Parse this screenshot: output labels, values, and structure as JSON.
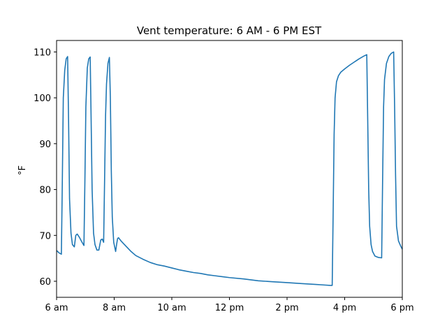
{
  "chart_data": {
    "type": "line",
    "title": "Vent temperature: 6 AM - 6 PM EST",
    "xlabel": "",
    "ylabel": "°F",
    "grid": false,
    "xlim": [
      "06:00",
      "18:00"
    ],
    "ylim": [
      56.5,
      112.5
    ],
    "x_ticks": [
      {
        "time": "06:00",
        "label": "6 am"
      },
      {
        "time": "08:00",
        "label": "8 am"
      },
      {
        "time": "10:00",
        "label": "10 am"
      },
      {
        "time": "12:00",
        "label": "12 pm"
      },
      {
        "time": "14:00",
        "label": "2 pm"
      },
      {
        "time": "16:00",
        "label": "4 pm"
      },
      {
        "time": "18:00",
        "label": "6 pm"
      }
    ],
    "y_ticks": [
      60,
      70,
      80,
      90,
      100,
      110
    ],
    "series": [
      {
        "color": "#1f77b4",
        "points": [
          [
            "06:00",
            66.7
          ],
          [
            "06:05",
            66.2
          ],
          [
            "06:10",
            65.9
          ],
          [
            "06:12",
            82.0
          ],
          [
            "06:14",
            100.0
          ],
          [
            "06:17",
            106.0
          ],
          [
            "06:20",
            108.5
          ],
          [
            "06:23",
            109.0
          ],
          [
            "06:25",
            95.0
          ],
          [
            "06:27",
            78.0
          ],
          [
            "06:30",
            70.5
          ],
          [
            "06:33",
            68.0
          ],
          [
            "06:37",
            67.5
          ],
          [
            "06:40",
            70.0
          ],
          [
            "06:43",
            70.3
          ],
          [
            "06:48",
            69.5
          ],
          [
            "06:53",
            68.5
          ],
          [
            "06:57",
            67.8
          ],
          [
            "06:59",
            82.0
          ],
          [
            "07:01",
            98.0
          ],
          [
            "07:04",
            106.5
          ],
          [
            "07:07",
            108.5
          ],
          [
            "07:10",
            108.9
          ],
          [
            "07:12",
            95.0
          ],
          [
            "07:14",
            80.0
          ],
          [
            "07:17",
            70.5
          ],
          [
            "07:20",
            68.0
          ],
          [
            "07:24",
            66.8
          ],
          [
            "07:28",
            66.8
          ],
          [
            "07:32",
            69.0
          ],
          [
            "07:35",
            69.2
          ],
          [
            "07:38",
            68.5
          ],
          [
            "07:40",
            82.0
          ],
          [
            "07:42",
            96.0
          ],
          [
            "07:44",
            103.0
          ],
          [
            "07:47",
            107.5
          ],
          [
            "07:50",
            108.8
          ],
          [
            "07:52",
            100.0
          ],
          [
            "07:54",
            84.0
          ],
          [
            "07:56",
            74.0
          ],
          [
            "07:59",
            68.5
          ],
          [
            "08:03",
            66.5
          ],
          [
            "08:05",
            68.0
          ],
          [
            "08:07",
            69.3
          ],
          [
            "08:09",
            69.5
          ],
          [
            "08:15",
            68.7
          ],
          [
            "08:25",
            67.6
          ],
          [
            "08:35",
            66.5
          ],
          [
            "08:45",
            65.6
          ],
          [
            "09:00",
            64.8
          ],
          [
            "09:15",
            64.1
          ],
          [
            "09:30",
            63.6
          ],
          [
            "09:45",
            63.3
          ],
          [
            "10:00",
            62.9
          ],
          [
            "10:15",
            62.5
          ],
          [
            "10:30",
            62.2
          ],
          [
            "10:45",
            61.9
          ],
          [
            "11:00",
            61.7
          ],
          [
            "11:15",
            61.4
          ],
          [
            "11:30",
            61.2
          ],
          [
            "11:45",
            61.0
          ],
          [
            "12:00",
            60.8
          ],
          [
            "12:30",
            60.5
          ],
          [
            "13:00",
            60.1
          ],
          [
            "13:30",
            59.9
          ],
          [
            "14:00",
            59.7
          ],
          [
            "14:30",
            59.5
          ],
          [
            "15:00",
            59.3
          ],
          [
            "15:15",
            59.2
          ],
          [
            "15:30",
            59.1
          ],
          [
            "15:34",
            59.1
          ],
          [
            "15:36",
            75.0
          ],
          [
            "15:38",
            92.0
          ],
          [
            "15:40",
            100.0
          ],
          [
            "15:43",
            103.5
          ],
          [
            "15:47",
            104.8
          ],
          [
            "15:52",
            105.6
          ],
          [
            "16:00",
            106.3
          ],
          [
            "16:10",
            107.1
          ],
          [
            "16:20",
            107.8
          ],
          [
            "16:30",
            108.5
          ],
          [
            "16:40",
            109.1
          ],
          [
            "16:46",
            109.4
          ],
          [
            "16:48",
            95.0
          ],
          [
            "16:50",
            80.0
          ],
          [
            "16:52",
            72.0
          ],
          [
            "16:55",
            68.0
          ],
          [
            "16:58",
            66.5
          ],
          [
            "17:03",
            65.5
          ],
          [
            "17:10",
            65.2
          ],
          [
            "17:17",
            65.1
          ],
          [
            "17:19",
            82.0
          ],
          [
            "17:21",
            98.0
          ],
          [
            "17:23",
            104.0
          ],
          [
            "17:27",
            107.5
          ],
          [
            "17:32",
            109.0
          ],
          [
            "17:37",
            109.7
          ],
          [
            "17:42",
            110.0
          ],
          [
            "17:44",
            98.0
          ],
          [
            "17:46",
            83.0
          ],
          [
            "17:48",
            72.0
          ],
          [
            "17:52",
            68.8
          ],
          [
            "17:57",
            67.6
          ],
          [
            "18:00",
            67.0
          ]
        ]
      }
    ]
  }
}
